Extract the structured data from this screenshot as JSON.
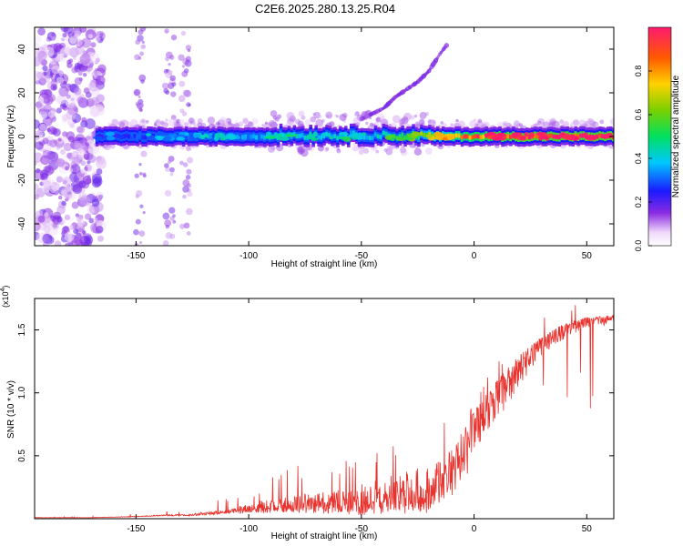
{
  "title": "C2E6.2025.280.13.25.R04",
  "colors": {
    "snr_line": "#e8322d",
    "axis": "#000000"
  },
  "chart_data": [
    {
      "type": "heatmap",
      "name": "spectrogram",
      "xlabel": "Height of straight line (km)",
      "ylabel": "Frequency (Hz)",
      "xlim": [
        -195,
        62
      ],
      "ylim": [
        -50,
        50
      ],
      "xticks": [
        -150,
        -100,
        -50,
        0,
        50
      ],
      "xtick_labels": [
        "-150",
        "-100",
        "-50",
        "0",
        "50"
      ],
      "yticks": [
        -40,
        -20,
        0,
        20,
        40
      ],
      "ytick_labels": [
        "-40",
        "-20",
        "0",
        "20",
        "40"
      ],
      "colorbar": {
        "label": "Normalized spectral amplitude",
        "range": [
          0,
          1
        ],
        "ticks": [
          0.0,
          0.2,
          0.4,
          0.6,
          0.8
        ],
        "tick_labels": [
          "0.0",
          "0.2",
          "0.4",
          "0.6",
          "0.8"
        ]
      },
      "main_band": {
        "x_start": -168,
        "x_end": 62,
        "center_hz": 0,
        "half_width_hz": 3,
        "amplitude_profile": [
          [
            -168,
            0.22
          ],
          [
            -150,
            0.28
          ],
          [
            -120,
            0.3
          ],
          [
            -100,
            0.35
          ],
          [
            -80,
            0.4
          ],
          [
            -50,
            0.38
          ],
          [
            -30,
            0.5
          ],
          [
            -10,
            0.75
          ],
          [
            0,
            0.85
          ],
          [
            20,
            0.95
          ],
          [
            40,
            0.95
          ],
          [
            62,
            0.95
          ]
        ]
      },
      "diagonal_feature": {
        "points": [
          [
            -50,
            8
          ],
          [
            -40,
            13
          ],
          [
            -35,
            18
          ],
          [
            -25,
            25
          ],
          [
            -20,
            30
          ],
          [
            -15,
            38
          ],
          [
            -12,
            42
          ]
        ],
        "amplitude": 0.12
      },
      "noise_region": {
        "x_start": -195,
        "x_end": -165,
        "amplitude": 0.1
      },
      "noise_columns": [
        -148,
        -135,
        -128
      ]
    },
    {
      "type": "line",
      "name": "snr",
      "xlabel": "Height of straight line (km)",
      "ylabel": "SNR (10 * v/v)",
      "scale_label": "(x10",
      "scale_exp": "4",
      "xlim": [
        -195,
        62
      ],
      "ylim": [
        0,
        1.75
      ],
      "xticks": [
        -150,
        -100,
        -50,
        0,
        50
      ],
      "xtick_labels": [
        "-150",
        "-100",
        "-50",
        "0",
        "50"
      ],
      "yticks": [
        0.5,
        1.0,
        1.5
      ],
      "ytick_labels": [
        "0.5",
        "1.0",
        "1.5"
      ],
      "envelope_x": [
        -195,
        -170,
        -150,
        -140,
        -125,
        -110,
        -100,
        -90,
        -80,
        -70,
        -60,
        -50,
        -40,
        -30,
        -20,
        -10,
        0,
        10,
        20,
        30,
        40,
        50,
        62
      ],
      "envelope_y": [
        0.01,
        0.01,
        0.02,
        0.03,
        0.04,
        0.08,
        0.12,
        0.17,
        0.2,
        0.22,
        0.24,
        0.28,
        0.33,
        0.4,
        0.45,
        0.55,
        0.85,
        1.1,
        1.3,
        1.45,
        1.55,
        1.6,
        1.62
      ],
      "noise_frac": [
        0.3,
        0.3,
        0.3,
        0.35,
        0.5,
        0.6,
        0.7,
        0.8,
        0.85,
        0.9,
        0.95,
        1.0,
        1.0,
        1.0,
        1.0,
        0.7,
        0.35,
        0.3,
        0.2,
        0.1,
        0.08,
        0.05,
        0.05
      ]
    }
  ]
}
